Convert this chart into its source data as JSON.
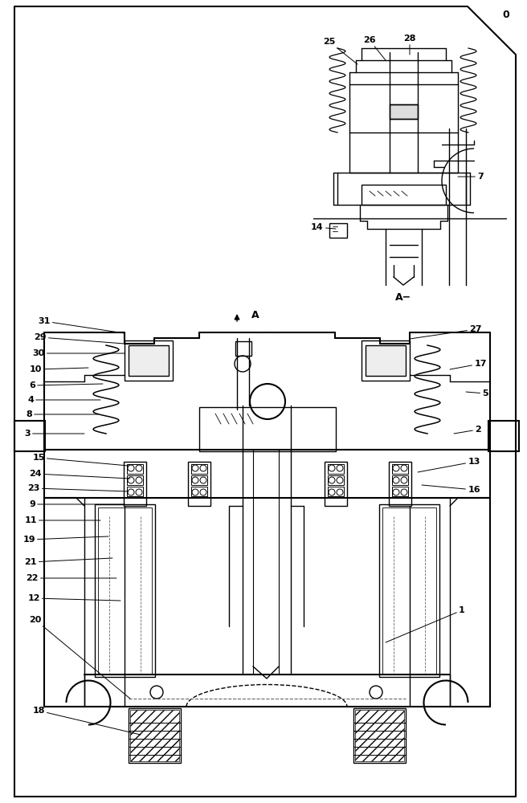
{
  "bg": "#ffffff",
  "lc": "#000000",
  "fig_w": 6.56,
  "fig_h": 10.0,
  "dpi": 100
}
